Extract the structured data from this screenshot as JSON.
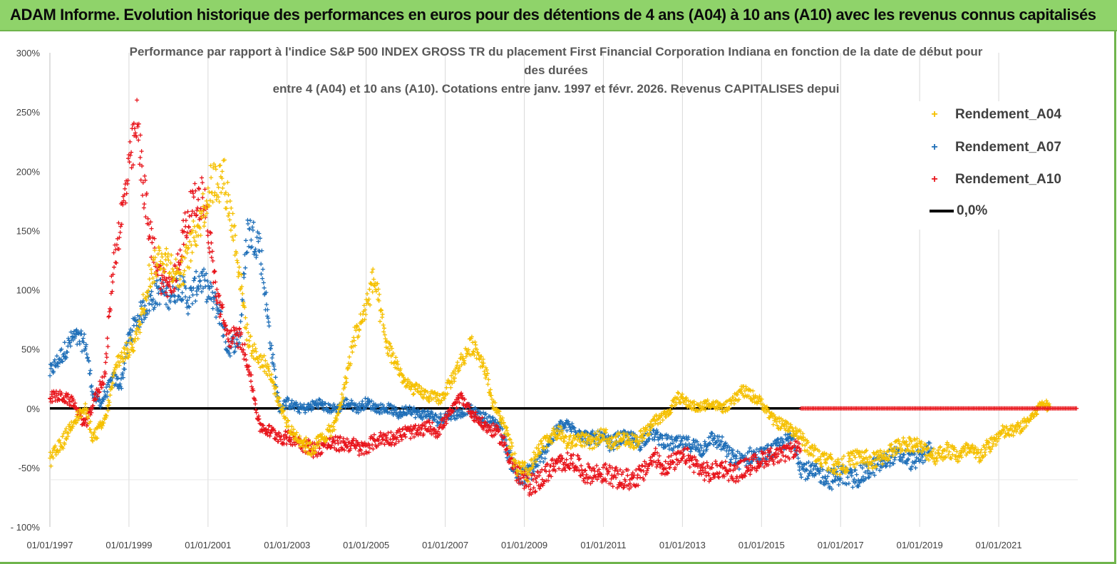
{
  "banner": {
    "title": "ADAM Informe. Evolution historique des performances en euros pour des détentions de 4 ans (A04) à 10 ans (A10) avec les revenus connus capitalisés"
  },
  "colors": {
    "banner": "#8fd36a",
    "a04": "#f5c000",
    "a07": "#1f6fb8",
    "a10": "#e8141b",
    "zero": "#000000"
  },
  "chart_data": {
    "type": "scatter",
    "title_lines": [
      "Performance par rapport à l'indice S&P 500 INDEX GROSS TR  du placement First Financial Corporation Indiana en fonction de la date de début pour",
      "des durées",
      "entre 4 (A04) et 10 ans (A10). Cotations entre janv. 1997 et févr. 2026. Revenus CAPITALISES depui"
    ],
    "xlabel": "",
    "ylabel": "",
    "x_range": [
      1997.0,
      2023.0
    ],
    "ylim": [
      -100,
      300
    ],
    "y_ticks": [
      -100,
      -50,
      0,
      50,
      100,
      150,
      200,
      250,
      300
    ],
    "y_tick_labels": [
      "- 100%",
      "-50%",
      "0%",
      "50%",
      "100%",
      "150%",
      "200%",
      "250%",
      "300%"
    ],
    "x_ticks": [
      1997,
      1999,
      2001,
      2003,
      2005,
      2007,
      2009,
      2011,
      2013,
      2015,
      2017,
      2019,
      2021
    ],
    "x_tick_labels": [
      "01/01/1997",
      "01/01/1999",
      "01/01/2001",
      "01/01/2003",
      "01/01/2005",
      "01/01/2007",
      "01/01/2009",
      "01/01/2011",
      "01/01/2013",
      "01/01/2015",
      "01/01/2017",
      "01/01/2019",
      "01/01/2021"
    ],
    "vertical_grid": true,
    "legend_position": "top-right",
    "series": [
      {
        "name": "Rendement_A04",
        "color": "#f5c000",
        "x": [
          1997.0,
          1997.3,
          1997.6,
          1997.9,
          1998.1,
          1998.4,
          1998.7,
          1999.0,
          1999.2,
          1999.5,
          1999.8,
          2000.1,
          2000.3,
          2000.6,
          2000.9,
          2001.1,
          2001.4,
          2001.7,
          2002.0,
          2002.2,
          2002.5,
          2002.8,
          2003.1,
          2003.3,
          2003.6,
          2003.9,
          2004.2,
          2004.4,
          2004.7,
          2004.9,
          2005.2,
          2005.5,
          2005.8,
          2006.0,
          2006.3,
          2006.6,
          2006.9,
          2007.1,
          2007.4,
          2007.7,
          2008.0,
          2008.2,
          2008.5,
          2008.8,
          2009.1,
          2009.3,
          2009.6,
          2009.9,
          2010.1,
          2010.4,
          2010.7,
          2011.0,
          2011.2,
          2011.5,
          2011.8,
          2012.1,
          2012.3,
          2012.6,
          2012.9,
          2013.1,
          2013.4,
          2013.7,
          2014.0,
          2014.2,
          2014.5,
          2014.8,
          2015.0,
          2015.3,
          2015.6,
          2015.9,
          2016.1,
          2016.4,
          2016.7,
          2017.0,
          2017.2,
          2017.5,
          2017.8,
          2018.1,
          2018.3,
          2018.6,
          2018.9,
          2019.1,
          2019.4,
          2019.7,
          2020.0,
          2020.2,
          2020.5,
          2020.8,
          2021.1,
          2021.3,
          2021.6,
          2021.9,
          2022.1,
          2022.3
        ],
        "values": [
          -45,
          -30,
          -10,
          0,
          -25,
          -10,
          40,
          50,
          60,
          110,
          130,
          120,
          110,
          140,
          170,
          190,
          195,
          140,
          60,
          45,
          35,
          5,
          -20,
          -25,
          -35,
          -25,
          -15,
          10,
          60,
          75,
          110,
          55,
          35,
          20,
          15,
          10,
          8,
          20,
          40,
          55,
          35,
          5,
          -15,
          -50,
          -55,
          -40,
          -25,
          -20,
          -30,
          -25,
          -30,
          -20,
          -30,
          -25,
          -28,
          -20,
          -10,
          -5,
          10,
          5,
          0,
          5,
          0,
          3,
          15,
          10,
          5,
          -10,
          -15,
          -20,
          -30,
          -40,
          -45,
          -50,
          -45,
          -40,
          -45,
          -40,
          -35,
          -30,
          -30,
          -35,
          -40,
          -35,
          -40,
          -35,
          -40,
          -30,
          -20,
          -20,
          -15,
          -5,
          5,
          0
        ]
      },
      {
        "name": "Rendement_A07",
        "color": "#1f6fb8",
        "x": [
          1997.0,
          1997.2,
          1997.4,
          1997.6,
          1997.9,
          1998.1,
          1998.3,
          1998.6,
          1998.8,
          1999.0,
          1999.3,
          1999.5,
          1999.8,
          2000.0,
          2000.3,
          2000.5,
          2000.8,
          2001.0,
          2001.3,
          2001.5,
          2001.8,
          2002.0,
          2002.3,
          2002.6,
          2002.8,
          2003.0,
          2003.3,
          2003.5,
          2003.8,
          2004.0,
          2004.3,
          2004.5,
          2004.8,
          2005.0,
          2005.3,
          2005.6,
          2005.8,
          2006.1,
          2006.3,
          2006.6,
          2006.8,
          2007.1,
          2007.3,
          2007.6,
          2007.8,
          2008.1,
          2008.4,
          2008.6,
          2008.9,
          2009.1,
          2009.4,
          2009.6,
          2009.9,
          2010.1,
          2010.4,
          2010.6,
          2010.9,
          2011.2,
          2011.4,
          2011.7,
          2011.9,
          2012.2,
          2012.4,
          2012.7,
          2012.9,
          2013.2,
          2013.5,
          2013.7,
          2014.0,
          2014.2,
          2014.5,
          2014.7,
          2015.0,
          2015.3,
          2015.5,
          2015.8,
          2016.0,
          2016.3,
          2016.5,
          2016.8,
          2017.0,
          2017.3,
          2017.6,
          2017.8,
          2018.1,
          2018.3,
          2018.6,
          2018.8,
          2019.1,
          2019.3
        ],
        "values": [
          30,
          40,
          50,
          60,
          55,
          10,
          5,
          25,
          20,
          60,
          80,
          90,
          100,
          95,
          105,
          90,
          110,
          100,
          80,
          50,
          60,
          150,
          140,
          50,
          0,
          5,
          0,
          0,
          5,
          0,
          0,
          5,
          0,
          5,
          0,
          0,
          -5,
          0,
          -5,
          -5,
          -10,
          -5,
          -5,
          0,
          -5,
          -10,
          -15,
          -40,
          -60,
          -55,
          -45,
          -30,
          -15,
          -15,
          -20,
          -25,
          -25,
          -30,
          -25,
          -25,
          -30,
          -20,
          -25,
          -30,
          -30,
          -30,
          -35,
          -25,
          -30,
          -40,
          -45,
          -40,
          -40,
          -35,
          -30,
          -25,
          -50,
          -55,
          -55,
          -60,
          -55,
          -60,
          -55,
          -50,
          -45,
          -40,
          -40,
          -45,
          -40,
          -30
        ]
      },
      {
        "name": "Rendement_A10",
        "color": "#e8141b",
        "x": [
          1997.0,
          1997.3,
          1997.6,
          1997.9,
          1998.1,
          1998.4,
          1998.6,
          1998.9,
          1999.2,
          1999.5,
          1999.8,
          2000.1,
          2000.4,
          2000.6,
          2000.9,
          2001.2,
          2001.5,
          2001.8,
          2002.0,
          2002.3,
          2002.6,
          2002.9,
          2003.2,
          2003.4,
          2003.7,
          2004.0,
          2004.3,
          2004.6,
          2004.9,
          2005.1,
          2005.4,
          2005.7,
          2006.0,
          2006.3,
          2006.6,
          2006.8,
          2007.1,
          2007.4,
          2007.7,
          2008.0,
          2008.3,
          2008.5,
          2008.8,
          2009.1,
          2009.4,
          2009.7,
          2010.0,
          2010.3,
          2010.5,
          2010.8,
          2011.1,
          2011.4,
          2011.7,
          2012.0,
          2012.3,
          2012.5,
          2012.8,
          2013.1,
          2013.4,
          2013.7,
          2014.0,
          2014.3,
          2014.6,
          2014.9,
          2015.2,
          2015.5,
          2015.8,
          2016.0
        ],
        "values": [
          10,
          10,
          5,
          -15,
          5,
          30,
          120,
          180,
          240,
          150,
          110,
          100,
          150,
          170,
          180,
          100,
          60,
          60,
          40,
          -15,
          -20,
          -25,
          -25,
          -30,
          -35,
          -30,
          -30,
          -30,
          -35,
          -30,
          -25,
          -25,
          -20,
          -20,
          -15,
          -20,
          -5,
          10,
          -5,
          -15,
          -20,
          -30,
          -55,
          -65,
          -60,
          -50,
          -45,
          -45,
          -55,
          -55,
          -55,
          -60,
          -60,
          -55,
          -40,
          -50,
          -45,
          -40,
          -50,
          -55,
          -50,
          -55,
          -50,
          -45,
          -40,
          -40,
          -35,
          -30
        ]
      },
      {
        "name": "0,0%",
        "color": "#000000",
        "x": [
          1997.0,
          2016.0
        ],
        "values": [
          0,
          0
        ]
      }
    ],
    "a10_zero_cluster": {
      "x_start": 2016.0,
      "x_end": 2023.0,
      "value": 0
    }
  }
}
